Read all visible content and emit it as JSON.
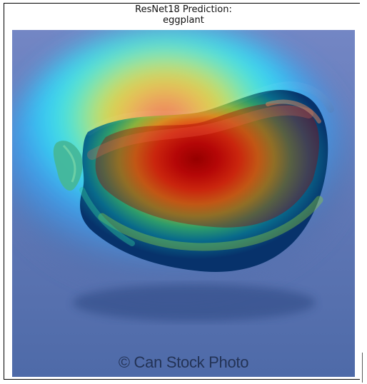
{
  "figure": {
    "title_line_1": "ResNet18 Prediction:",
    "title_line_2": "eggplant",
    "watermark": "© Can Stock Photo",
    "image_subject": "eggplant",
    "colormap": "jet",
    "colors": {
      "background_blue": "#5571ad",
      "hot_red": "#d30f10",
      "warm_orange": "#ff8a3a",
      "yellow": "#e8ec1f",
      "cyan": "#33f0ff",
      "dark_blue": "#06306e"
    }
  }
}
